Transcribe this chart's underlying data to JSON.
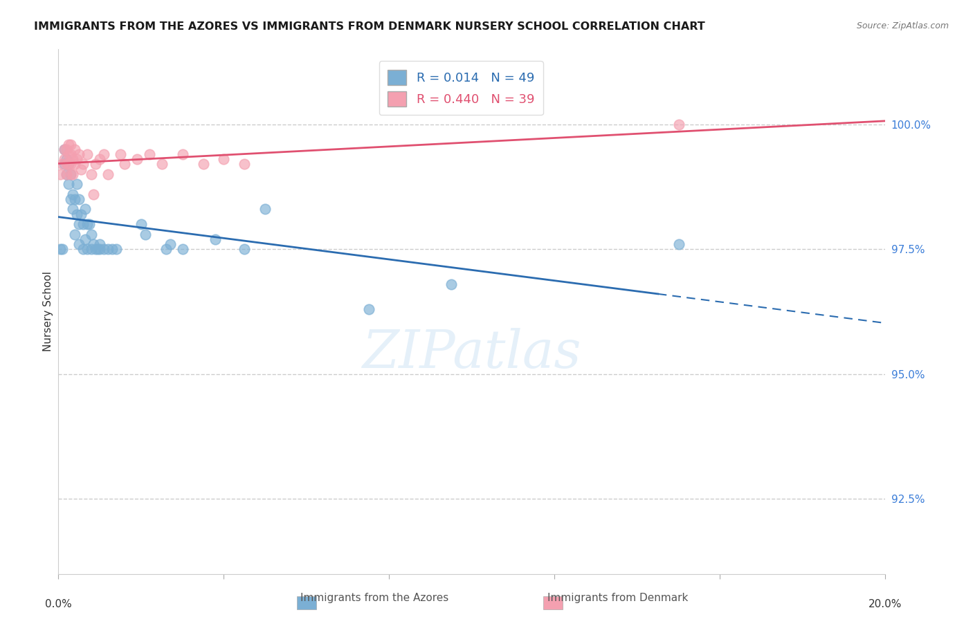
{
  "title": "IMMIGRANTS FROM THE AZORES VS IMMIGRANTS FROM DENMARK NURSERY SCHOOL CORRELATION CHART",
  "source": "Source: ZipAtlas.com",
  "ylabel": "Nursery School",
  "yticks": [
    92.5,
    95.0,
    97.5,
    100.0
  ],
  "ytick_labels": [
    "92.5%",
    "95.0%",
    "97.5%",
    "100.0%"
  ],
  "xlim": [
    0.0,
    20.0
  ],
  "ylim": [
    91.0,
    101.5
  ],
  "azores_R": 0.014,
  "azores_N": 49,
  "denmark_R": 0.44,
  "denmark_N": 39,
  "azores_color": "#7BAFD4",
  "denmark_color": "#F4A0B0",
  "azores_line_color": "#2B6CB0",
  "denmark_line_color": "#E05070",
  "grid_color": "#CCCCCC",
  "azores_x": [
    0.05,
    0.1,
    0.15,
    0.15,
    0.2,
    0.2,
    0.25,
    0.25,
    0.3,
    0.3,
    0.35,
    0.35,
    0.4,
    0.4,
    0.45,
    0.45,
    0.5,
    0.5,
    0.5,
    0.55,
    0.6,
    0.6,
    0.65,
    0.65,
    0.7,
    0.7,
    0.75,
    0.8,
    0.8,
    0.85,
    0.9,
    0.95,
    1.0,
    1.0,
    1.1,
    1.2,
    1.3,
    1.4,
    2.0,
    2.1,
    2.6,
    2.7,
    3.0,
    3.8,
    4.5,
    5.0,
    7.5,
    9.5,
    15.0
  ],
  "azores_y": [
    97.5,
    97.5,
    99.2,
    99.5,
    99.0,
    99.3,
    98.8,
    99.2,
    98.5,
    99.0,
    98.3,
    98.6,
    97.8,
    98.5,
    98.2,
    98.8,
    97.6,
    98.0,
    98.5,
    98.2,
    97.5,
    98.0,
    97.7,
    98.3,
    97.5,
    98.0,
    98.0,
    97.5,
    97.8,
    97.6,
    97.5,
    97.5,
    97.6,
    97.5,
    97.5,
    97.5,
    97.5,
    97.5,
    98.0,
    97.8,
    97.5,
    97.6,
    97.5,
    97.7,
    97.5,
    98.3,
    96.3,
    96.8,
    97.6
  ],
  "denmark_x": [
    0.05,
    0.1,
    0.15,
    0.15,
    0.2,
    0.2,
    0.2,
    0.25,
    0.25,
    0.25,
    0.3,
    0.3,
    0.3,
    0.3,
    0.35,
    0.35,
    0.4,
    0.4,
    0.45,
    0.5,
    0.55,
    0.6,
    0.7,
    0.8,
    0.85,
    0.9,
    1.0,
    1.1,
    1.2,
    1.5,
    1.6,
    1.9,
    2.2,
    2.5,
    3.0,
    3.5,
    4.0,
    4.5,
    15.0
  ],
  "denmark_y": [
    99.0,
    99.2,
    99.3,
    99.5,
    99.0,
    99.2,
    99.5,
    99.2,
    99.4,
    99.6,
    99.0,
    99.2,
    99.4,
    99.6,
    99.0,
    99.3,
    99.2,
    99.5,
    99.3,
    99.4,
    99.1,
    99.2,
    99.4,
    99.0,
    98.6,
    99.2,
    99.3,
    99.4,
    99.0,
    99.4,
    99.2,
    99.3,
    99.4,
    99.2,
    99.4,
    99.2,
    99.3,
    99.2,
    100.0
  ]
}
